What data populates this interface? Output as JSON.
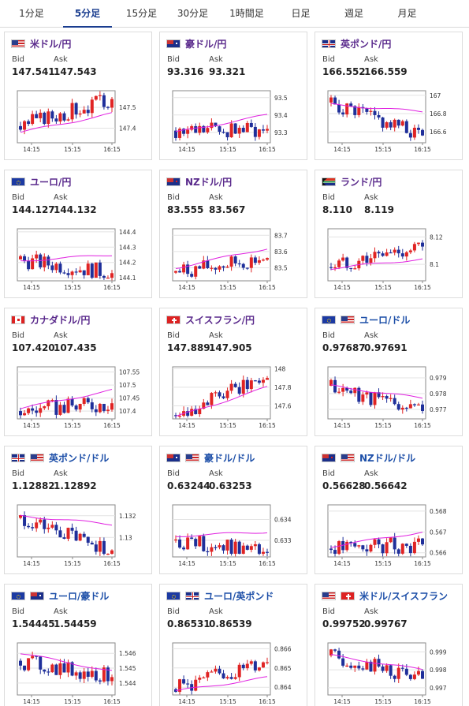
{
  "tabs": [
    "1分足",
    "5分足",
    "15分足",
    "30分足",
    "1時間足",
    "日足",
    "週足",
    "月足"
  ],
  "active_tab": 1,
  "bid_label": "Bid",
  "ask_label": "Ask",
  "colors": {
    "up": "#e02424",
    "down": "#1f2f9a",
    "ma": "#e020e0",
    "accent": "#1a3d8f"
  },
  "pairs": [
    {
      "name": "米ドル/円",
      "flag": "us",
      "bid": "147.541",
      "ask": "147.543",
      "chart_data": {
        "type": "candlestick",
        "x_ticks": [
          "14:15",
          "15:15",
          "16:15"
        ],
        "y_ticks": [
          "147.5",
          "147.4"
        ],
        "ylim": [
          147.33,
          147.58
        ],
        "start": 147.41,
        "end": 147.54,
        "ma_start": 147.38,
        "ma_end": 147.47
      }
    },
    {
      "name": "豪ドル/円",
      "flag": "au",
      "bid": "93.316",
      "ask": "93.321",
      "chart_data": {
        "type": "candlestick",
        "x_ticks": [
          "14:15",
          "15:15",
          "16:15"
        ],
        "y_ticks": [
          "93.5",
          "93.4",
          "93.3"
        ],
        "ylim": [
          93.24,
          93.54
        ],
        "start": 93.31,
        "end": 93.32,
        "ma_start": 93.3,
        "ma_end": 93.4
      }
    },
    {
      "name": "英ポンド/円",
      "flag": "uk",
      "bid": "166.552",
      "ask": "166.559",
      "chart_data": {
        "type": "candlestick",
        "x_ticks": [
          "14:15",
          "15:15",
          "16:15"
        ],
        "y_ticks": [
          "167",
          "166.8",
          "166.6"
        ],
        "ylim": [
          166.48,
          167.05
        ],
        "start": 166.92,
        "end": 166.56,
        "ma_start": 166.9,
        "ma_end": 166.82
      }
    },
    {
      "name": "ユーロ/円",
      "flag": "eu",
      "bid": "144.127",
      "ask": "144.132",
      "chart_data": {
        "type": "candlestick",
        "x_ticks": [
          "14:15",
          "15:15",
          "16:15"
        ],
        "y_ticks": [
          "144.4",
          "144.3",
          "144.2",
          "144.1"
        ],
        "ylim": [
          144.08,
          144.42
        ],
        "start": 144.22,
        "end": 144.13,
        "ma_start": 144.21,
        "ma_end": 144.25
      }
    },
    {
      "name": "NZドル/円",
      "flag": "nz",
      "bid": "83.555",
      "ask": "83.567",
      "chart_data": {
        "type": "candlestick",
        "x_ticks": [
          "14:15",
          "15:15",
          "16:15"
        ],
        "y_ticks": [
          "83.7",
          "83.6",
          "83.5"
        ],
        "ylim": [
          83.42,
          83.74
        ],
        "start": 83.47,
        "end": 83.56,
        "ma_start": 83.5,
        "ma_end": 83.62
      }
    },
    {
      "name": "ランド/円",
      "flag": "za",
      "bid": "8.110",
      "ask": "8.119",
      "chart_data": {
        "type": "candlestick",
        "x_ticks": [
          "14:15",
          "15:15",
          "16:15"
        ],
        "y_ticks": [
          "8.12",
          "8.1"
        ],
        "ylim": [
          8.088,
          8.126
        ],
        "start": 8.098,
        "end": 8.113,
        "ma_start": 8.097,
        "ma_end": 8.104
      }
    },
    {
      "name": "カナダドル/円",
      "flag": "ca",
      "bid": "107.420",
      "ask": "107.435",
      "chart_data": {
        "type": "candlestick",
        "x_ticks": [
          "14:15",
          "15:15",
          "16:15"
        ],
        "y_ticks": [
          "107.55",
          "107.5",
          "107.45",
          "107.4"
        ],
        "ylim": [
          107.37,
          107.57
        ],
        "start": 107.4,
        "end": 107.43,
        "ma_start": 107.41,
        "ma_end": 107.48
      }
    },
    {
      "name": "スイスフラン/円",
      "flag": "ch",
      "bid": "147.889",
      "ask": "147.905",
      "chart_data": {
        "type": "candlestick",
        "x_ticks": [
          "14:15",
          "15:15",
          "16:15"
        ],
        "y_ticks": [
          "148",
          "147.8",
          "147.6"
        ],
        "ylim": [
          147.46,
          148.02
        ],
        "start": 147.5,
        "end": 147.9,
        "ma_start": 147.48,
        "ma_end": 147.8
      }
    },
    {
      "name": "ユーロ/ドル",
      "flag": "eu-us",
      "bid": "0.97687",
      "ask": "0.97691",
      "chart_data": {
        "type": "candlestick",
        "x_ticks": [
          "14:15",
          "15:15",
          "16:15"
        ],
        "y_ticks": [
          "0.979",
          "0.978",
          "0.977"
        ],
        "ylim": [
          0.9764,
          0.9797
        ],
        "start": 0.9785,
        "end": 0.9769,
        "ma_start": 0.9785,
        "ma_end": 0.9777
      }
    },
    {
      "name": "英ポンド/ドル",
      "flag": "uk-us",
      "bid": "1.12882",
      "ask": "1.12892",
      "chart_data": {
        "type": "candlestick",
        "x_ticks": [
          "14:15",
          "15:15",
          "16:15"
        ],
        "y_ticks": [
          "1.132",
          "1.13"
        ],
        "ylim": [
          1.1282,
          1.133
        ],
        "start": 1.1318,
        "end": 1.1288,
        "ma_start": 1.132,
        "ma_end": 1.1312
      }
    },
    {
      "name": "豪ドル/ドル",
      "flag": "au-us",
      "bid": "0.63244",
      "ask": "0.63253",
      "chart_data": {
        "type": "candlestick",
        "x_ticks": [
          "14:15",
          "15:15",
          "16:15"
        ],
        "y_ticks": [
          "0.634",
          "0.633"
        ],
        "ylim": [
          0.6322,
          0.6347
        ],
        "start": 0.633,
        "end": 0.6324,
        "ma_start": 0.6332,
        "ma_end": 0.6334
      }
    },
    {
      "name": "NZドル/ドル",
      "flag": "nz-us",
      "bid": "0.56628",
      "ask": "0.56642",
      "chart_data": {
        "type": "candlestick",
        "x_ticks": [
          "14:15",
          "15:15",
          "16:15"
        ],
        "y_ticks": [
          "0.568",
          "0.567",
          "0.566"
        ],
        "ylim": [
          0.5658,
          0.5683
        ],
        "start": 0.5662,
        "end": 0.5664,
        "ma_start": 0.5663,
        "ma_end": 0.567
      }
    },
    {
      "name": "ユーロ/豪ドル",
      "flag": "eu-au",
      "bid": "1.54445",
      "ask": "1.54459",
      "chart_data": {
        "type": "candlestick",
        "x_ticks": [
          "14:15",
          "15:15",
          "16:15"
        ],
        "y_ticks": [
          "1.546",
          "1.545",
          "1.544"
        ],
        "ylim": [
          1.5432,
          1.5467
        ],
        "start": 1.5455,
        "end": 1.5444,
        "ma_start": 1.546,
        "ma_end": 1.5448
      }
    },
    {
      "name": "ユーロ/英ポンド",
      "flag": "eu-uk",
      "bid": "0.86531",
      "ask": "0.86539",
      "chart_data": {
        "type": "candlestick",
        "x_ticks": [
          "14:15",
          "15:15",
          "16:15"
        ],
        "y_ticks": [
          "0.866",
          "0.865",
          "0.864"
        ],
        "ylim": [
          0.8636,
          0.8663
        ],
        "start": 0.8639,
        "end": 0.8653,
        "ma_start": 0.8638,
        "ma_end": 0.8645
      }
    },
    {
      "name": "米ドル/スイスフラン",
      "flag": "us-ch",
      "bid": "0.99752",
      "ask": "0.99767",
      "chart_data": {
        "type": "candlestick",
        "x_ticks": [
          "14:15",
          "15:15",
          "16:15"
        ],
        "y_ticks": [
          "0.999",
          "0.998",
          "0.997"
        ],
        "ylim": [
          0.9966,
          0.9995
        ],
        "start": 0.9988,
        "end": 0.9975,
        "ma_start": 0.9988,
        "ma_end": 0.998
      }
    }
  ]
}
